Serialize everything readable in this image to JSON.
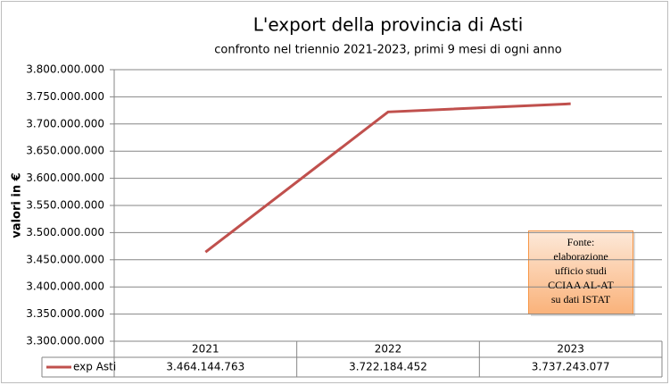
{
  "chart_data": {
    "type": "line",
    "title": "L'export della provincia di Asti",
    "subtitle": "confronto nel triennio 2021-2023, primi 9 mesi di ogni anno",
    "y_label": "valori in €",
    "categories": [
      "2021",
      "2022",
      "2023"
    ],
    "series": [
      {
        "name": "exp Asti",
        "color": "#c0504d",
        "values": [
          3464144763,
          3722184452,
          3737243077
        ],
        "value_labels": [
          "3.464.144.763",
          "3.722.184.452",
          "3.737.243.077"
        ]
      }
    ],
    "ylim": [
      3300000000,
      3800000000
    ],
    "yticks": [
      {
        "value": 3300000000,
        "label": "3.300.000.000"
      },
      {
        "value": 3350000000,
        "label": "3.350.000.000"
      },
      {
        "value": 3400000000,
        "label": "3.400.000.000"
      },
      {
        "value": 3450000000,
        "label": "3.450.000.000"
      },
      {
        "value": 3500000000,
        "label": "3.500.000.000"
      },
      {
        "value": 3550000000,
        "label": "3.550.000.000"
      },
      {
        "value": 3600000000,
        "label": "3.600.000.000"
      },
      {
        "value": 3650000000,
        "label": "3.650.000.000"
      },
      {
        "value": 3700000000,
        "label": "3.700.000.000"
      },
      {
        "value": 3750000000,
        "label": "3.750.000.000"
      },
      {
        "value": 3800000000,
        "label": "3.800.000.000"
      }
    ],
    "grid": true,
    "annotation": [
      "Fonte:",
      "elaborazione",
      "ufficio studi",
      "CCIAA AL-AT",
      "su dati ISTAT"
    ]
  }
}
